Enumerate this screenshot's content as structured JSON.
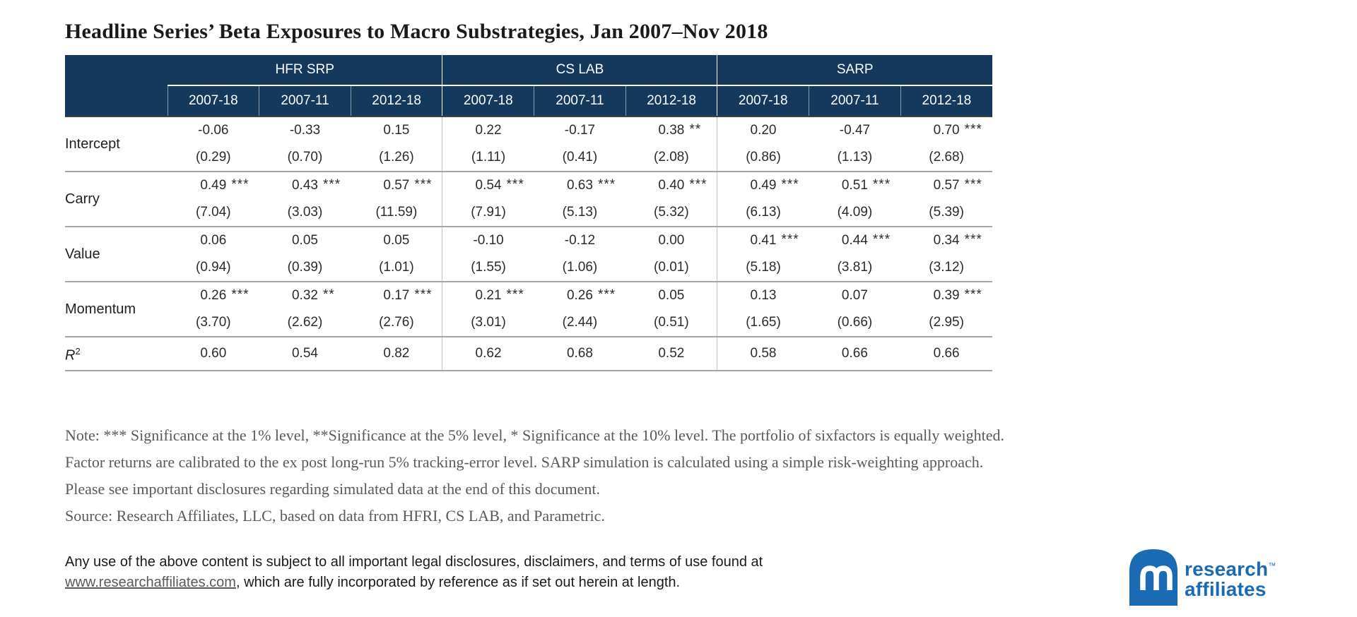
{
  "title": "Headline Series’ Beta Exposures to Macro Substrategies, Jan 2007–Nov 2018",
  "table": {
    "groups": [
      {
        "label": "HFR SRP"
      },
      {
        "label": "CS LAB"
      },
      {
        "label": "SARP"
      }
    ],
    "periods": [
      "2007-18",
      "2007-11",
      "2012-18",
      "2007-18",
      "2007-11",
      "2012-18",
      "2007-18",
      "2007-11",
      "2012-18"
    ],
    "rows": [
      {
        "label": "Intercept",
        "cells": [
          {
            "v": "-0.06",
            "s": "",
            "t": "(0.29)"
          },
          {
            "v": "-0.33",
            "s": "",
            "t": "(0.70)"
          },
          {
            "v": "0.15",
            "s": "",
            "t": "(1.26)"
          },
          {
            "v": "0.22",
            "s": "",
            "t": "(1.11)"
          },
          {
            "v": "-0.17",
            "s": "",
            "t": "(0.41)"
          },
          {
            "v": "0.38",
            "s": "**",
            "t": "(2.08)"
          },
          {
            "v": "0.20",
            "s": "",
            "t": "(0.86)"
          },
          {
            "v": "-0.47",
            "s": "",
            "t": "(1.13)"
          },
          {
            "v": "0.70",
            "s": "***",
            "t": "(2.68)"
          }
        ]
      },
      {
        "label": "Carry",
        "cells": [
          {
            "v": "0.49",
            "s": "***",
            "t": "(7.04)"
          },
          {
            "v": "0.43",
            "s": "***",
            "t": "(3.03)"
          },
          {
            "v": "0.57",
            "s": "***",
            "t": "(11.59)"
          },
          {
            "v": "0.54",
            "s": "***",
            "t": "(7.91)"
          },
          {
            "v": "0.63",
            "s": "***",
            "t": "(5.13)"
          },
          {
            "v": "0.40",
            "s": "***",
            "t": "(5.32)"
          },
          {
            "v": "0.49",
            "s": "***",
            "t": "(6.13)"
          },
          {
            "v": "0.51",
            "s": "***",
            "t": "(4.09)"
          },
          {
            "v": "0.57",
            "s": "***",
            "t": "(5.39)"
          }
        ]
      },
      {
        "label": "Value",
        "cells": [
          {
            "v": "0.06",
            "s": "",
            "t": "(0.94)"
          },
          {
            "v": "0.05",
            "s": "",
            "t": "(0.39)"
          },
          {
            "v": "0.05",
            "s": "",
            "t": "(1.01)"
          },
          {
            "v": "-0.10",
            "s": "",
            "t": "(1.55)"
          },
          {
            "v": "-0.12",
            "s": "",
            "t": "(1.06)"
          },
          {
            "v": "0.00",
            "s": "",
            "t": "(0.01)"
          },
          {
            "v": "0.41",
            "s": "***",
            "t": "(5.18)"
          },
          {
            "v": "0.44",
            "s": "***",
            "t": "(3.81)"
          },
          {
            "v": "0.34",
            "s": "***",
            "t": "(3.12)"
          }
        ]
      },
      {
        "label": "Momentum",
        "cells": [
          {
            "v": "0.26",
            "s": "***",
            "t": "(3.70)"
          },
          {
            "v": "0.32",
            "s": "**",
            "t": "(2.62)"
          },
          {
            "v": "0.17",
            "s": "***",
            "t": "(2.76)"
          },
          {
            "v": "0.21",
            "s": "***",
            "t": "(3.01)"
          },
          {
            "v": "0.26",
            "s": "***",
            "t": "(2.44)"
          },
          {
            "v": "0.05",
            "s": "",
            "t": "(0.51)"
          },
          {
            "v": "0.13",
            "s": "",
            "t": "(1.65)"
          },
          {
            "v": "0.07",
            "s": "",
            "t": "(0.66)"
          },
          {
            "v": "0.39",
            "s": "***",
            "t": "(2.95)"
          }
        ]
      }
    ],
    "r2": {
      "base": "R",
      "sup": "2",
      "values": [
        "0.60",
        "0.54",
        "0.82",
        "0.62",
        "0.68",
        "0.52",
        "0.58",
        "0.66",
        "0.66"
      ]
    }
  },
  "note": "Note: *** Significance at the 1% level, **Significance at the 5% level, * Significance at the 10% level. The portfolio of sixfactors is equally weighted. Factor returns are calibrated to the ex post long-run 5% tracking-error level. SARP simulation is calculated using a simple risk-weighting approach. Please see important disclosures regarding simulated data at the end of this document.",
  "source": "Source: Research Affiliates, LLC, based on data from HFRI, CS LAB, and Parametric.",
  "footer": {
    "line1": "Any use of the above content is subject to all important legal disclosures, disclaimers, and terms of use found at",
    "link": "www.researchaffiliates.com",
    "line2_rest": ", which are fully incorporated by reference as if set out herein at length."
  },
  "logo": {
    "word1": "research",
    "trademark": "™",
    "word2": "affiliates"
  },
  "colors": {
    "header_navy": "#14395C",
    "logo_blue": "#1A6BB3",
    "grid_gray": "#A6A6A6",
    "note_gray": "#595959"
  }
}
